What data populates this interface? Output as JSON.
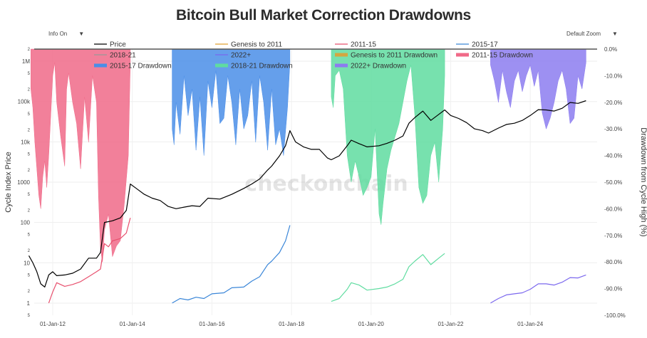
{
  "page": {
    "title": "Bitcoin Bull Market Correction Drawdowns",
    "info_menu": {
      "label": "Info On",
      "arrow": "▼"
    },
    "zoom_menu": {
      "label": "Default Zoom",
      "arrow": "▼"
    },
    "watermark": "checkonchain"
  },
  "chart_data": {
    "type": "line",
    "title": "Bitcoin Bull Market Correction Drawdowns",
    "xlabel": "",
    "ylabel": "Cycle Index Price",
    "y2label": "Drawdown from Cycle High (%)",
    "x_ticks": [
      "01-Jan-12",
      "01-Jan-14",
      "01-Jan-16",
      "01-Jan-18",
      "01-Jan-20",
      "01-Jan-22",
      "01-Jan-24"
    ],
    "x_tick_years": [
      2012,
      2014,
      2016,
      2018,
      2020,
      2022,
      2024
    ],
    "xlim": [
      2011.3,
      2025.5
    ],
    "y_axis": {
      "scale": "log",
      "ylim": [
        0.5,
        2000000
      ],
      "major_ticks": [
        {
          "value": 1000000,
          "label": "1M"
        },
        {
          "value": 100000,
          "label": "100k"
        },
        {
          "value": 10000,
          "label": "10k"
        },
        {
          "value": 1000,
          "label": "1000"
        },
        {
          "value": 100,
          "label": "100"
        },
        {
          "value": 10,
          "label": "10"
        },
        {
          "value": 1,
          "label": "1"
        }
      ],
      "minor_ticks": [
        {
          "value": 2000000,
          "label": "2"
        },
        {
          "value": 500000,
          "label": "5"
        },
        {
          "value": 200000,
          "label": "2"
        },
        {
          "value": 50000,
          "label": "5"
        },
        {
          "value": 20000,
          "label": "2"
        },
        {
          "value": 5000,
          "label": "5"
        },
        {
          "value": 2000,
          "label": "2"
        },
        {
          "value": 500,
          "label": "5"
        },
        {
          "value": 200,
          "label": "2"
        },
        {
          "value": 50,
          "label": "5"
        },
        {
          "value": 20,
          "label": "2"
        },
        {
          "value": 5,
          "label": "5"
        },
        {
          "value": 2,
          "label": "2"
        },
        {
          "value": 0.5,
          "label": "5"
        }
      ]
    },
    "y2_axis": {
      "ylim": [
        -100,
        0
      ],
      "ticks": [
        {
          "value": 0,
          "label": "0.0%"
        },
        {
          "value": -10,
          "label": "-10.0%"
        },
        {
          "value": -20,
          "label": "-20.0%"
        },
        {
          "value": -30,
          "label": "-30.0%"
        },
        {
          "value": -40,
          "label": "-40.0%"
        },
        {
          "value": -50,
          "label": "-50.0%"
        },
        {
          "value": -60,
          "label": "-60.0%"
        },
        {
          "value": -70,
          "label": "-70.0%"
        },
        {
          "value": -80,
          "label": "-80.0%"
        },
        {
          "value": -90,
          "label": "-90.0%"
        },
        {
          "value": -100,
          "label": "-100.0%"
        }
      ]
    },
    "legend": {
      "placement": "top",
      "entries": [
        {
          "label": "Price",
          "color": "#000000",
          "kind": "line"
        },
        {
          "label": "Genesis to 2011",
          "color": "#e0a030",
          "kind": "line"
        },
        {
          "label": "2011-15",
          "color": "#e8506e",
          "kind": "line"
        },
        {
          "label": "2015-17",
          "color": "#3a86d8",
          "kind": "line"
        },
        {
          "label": "2018-21",
          "color": "#999999",
          "kind": "line"
        },
        {
          "label": "2022+",
          "color": "#7b68ee",
          "kind": "line"
        },
        {
          "label": "Genesis to 2011 Drawdown",
          "color": "#d4a640",
          "kind": "area"
        },
        {
          "label": "2011-15 Drawdown",
          "color": "#f06a88",
          "kind": "area"
        },
        {
          "label": "2015-17 Drawdown",
          "color": "#4a8ee8",
          "kind": "area"
        },
        {
          "label": "2018-21 Drawdown",
          "color": "#5fdca0",
          "kind": "area"
        },
        {
          "label": "2022+ Drawdown",
          "color": "#8c7cf0",
          "kind": "area"
        }
      ]
    },
    "series": [
      {
        "name": "Price",
        "color": "#000000",
        "axis": "left",
        "x": [
          2011.4,
          2011.5,
          2011.6,
          2011.7,
          2011.8,
          2011.9,
          2012.0,
          2012.1,
          2012.3,
          2012.5,
          2012.7,
          2012.9,
          2013.1,
          2013.2,
          2013.3,
          2013.5,
          2013.7,
          2013.85,
          2013.95,
          2014.1,
          2014.3,
          2014.5,
          2014.7,
          2014.9,
          2015.1,
          2015.3,
          2015.5,
          2015.7,
          2015.9,
          2016.2,
          2016.5,
          2016.8,
          2017.0,
          2017.2,
          2017.4,
          2017.5,
          2017.7,
          2017.85,
          2017.96,
          2018.1,
          2018.3,
          2018.5,
          2018.7,
          2018.9,
          2019.0,
          2019.2,
          2019.4,
          2019.5,
          2019.7,
          2019.9,
          2020.2,
          2020.4,
          2020.6,
          2020.8,
          2020.95,
          2021.1,
          2021.3,
          2021.5,
          2021.7,
          2021.85,
          2022.0,
          2022.2,
          2022.4,
          2022.6,
          2022.8,
          2022.95,
          2023.2,
          2023.4,
          2023.6,
          2023.8,
          2024.0,
          2024.2,
          2024.4,
          2024.6,
          2024.8,
          2025.0,
          2025.2,
          2025.4
        ],
        "values": [
          15,
          10,
          6,
          3,
          2.5,
          5,
          6,
          4.8,
          5,
          5.5,
          7,
          13,
          13,
          18,
          100,
          110,
          130,
          200,
          900,
          700,
          500,
          400,
          350,
          250,
          220,
          240,
          260,
          250,
          400,
          380,
          500,
          700,
          900,
          1200,
          2000,
          2500,
          4500,
          8000,
          19000,
          10000,
          7500,
          6500,
          6500,
          4000,
          3600,
          4500,
          8000,
          11000,
          9000,
          7500,
          8000,
          9200,
          11000,
          14000,
          29000,
          40000,
          58000,
          34000,
          48000,
          62000,
          45000,
          38000,
          30000,
          21000,
          19000,
          16500,
          22000,
          27000,
          29000,
          34000,
          45000,
          63000,
          62000,
          58000,
          68000,
          95000,
          90000,
          105000
        ]
      },
      {
        "name": "2011-15",
        "color": "#e8506e",
        "axis": "left",
        "x": [
          2011.9,
          2012.0,
          2012.1,
          2012.3,
          2012.5,
          2012.7,
          2012.9,
          2013.1,
          2013.2,
          2013.3,
          2013.4,
          2013.5,
          2013.7,
          2013.85,
          2013.95
        ],
        "values": [
          1,
          1.9,
          3.2,
          2.6,
          2.9,
          3.4,
          4.5,
          6,
          7,
          30,
          25,
          35,
          40,
          55,
          130
        ]
      },
      {
        "name": "2015-17",
        "color": "#3a86d8",
        "axis": "left",
        "x": [
          2015.0,
          2015.2,
          2015.4,
          2015.6,
          2015.8,
          2016.0,
          2016.3,
          2016.5,
          2016.8,
          2017.0,
          2017.2,
          2017.4,
          2017.5,
          2017.7,
          2017.85,
          2017.96
        ],
        "values": [
          1,
          1.3,
          1.2,
          1.4,
          1.3,
          1.7,
          1.8,
          2.4,
          2.5,
          3.5,
          4.5,
          9,
          11,
          18,
          35,
          85
        ]
      },
      {
        "name": "2018-21",
        "color": "#5fdca0",
        "axis": "left",
        "x": [
          2019.0,
          2019.2,
          2019.4,
          2019.5,
          2019.7,
          2019.9,
          2020.2,
          2020.4,
          2020.6,
          2020.8,
          2020.95,
          2021.1,
          2021.3,
          2021.5,
          2021.7,
          2021.85
        ],
        "values": [
          1.1,
          1.3,
          2.2,
          3.2,
          2.8,
          2.1,
          2.3,
          2.5,
          3,
          3.9,
          8,
          11,
          16,
          9,
          13,
          17
        ]
      },
      {
        "name": "2022+",
        "color": "#7b68ee",
        "axis": "left",
        "x": [
          2023.0,
          2023.2,
          2023.4,
          2023.6,
          2023.8,
          2024.0,
          2024.2,
          2024.4,
          2024.6,
          2024.8,
          2025.0,
          2025.2,
          2025.4
        ],
        "values": [
          1,
          1.3,
          1.6,
          1.7,
          1.8,
          2.2,
          3.0,
          3.0,
          2.8,
          3.3,
          4.3,
          4.2,
          5.0
        ]
      }
    ],
    "drawdowns": [
      {
        "name": "2011-15 Drawdown",
        "color": "#f06a88",
        "x": [
          2011.45,
          2011.5,
          2011.55,
          2011.6,
          2011.65,
          2011.7,
          2011.75,
          2011.8,
          2011.85,
          2011.9,
          2011.95,
          2012.0,
          2012.05,
          2012.1,
          2012.2,
          2012.3,
          2012.35,
          2012.4,
          2012.5,
          2012.6,
          2012.7,
          2012.8,
          2012.9,
          2013.0,
          2013.1,
          2013.15,
          2013.2,
          2013.25,
          2013.3,
          2013.4,
          2013.5,
          2013.6,
          2013.7,
          2013.8,
          2013.9,
          2013.95
        ],
        "values": [
          -15,
          -22,
          -35,
          -45,
          -55,
          -60,
          -48,
          -42,
          -52,
          -40,
          -25,
          -10,
          -5,
          -20,
          -33,
          -44,
          -15,
          -9,
          -20,
          -28,
          -45,
          -18,
          -35,
          -10,
          -20,
          -55,
          -75,
          -80,
          -68,
          -62,
          -78,
          -74,
          -72,
          -58,
          -40,
          -5
        ]
      },
      {
        "name": "2015-17 Drawdown",
        "color": "#4a8ee8",
        "x": [
          2015.0,
          2015.05,
          2015.1,
          2015.2,
          2015.3,
          2015.4,
          2015.5,
          2015.6,
          2015.7,
          2015.8,
          2015.9,
          2016.0,
          2016.1,
          2016.2,
          2016.3,
          2016.4,
          2016.5,
          2016.6,
          2016.7,
          2016.8,
          2016.9,
          2017.0,
          2017.1,
          2017.2,
          2017.3,
          2017.4,
          2017.5,
          2017.6,
          2017.7,
          2017.8,
          2017.9,
          2017.96
        ],
        "values": [
          -30,
          -36,
          -20,
          -32,
          -10,
          -25,
          -15,
          -38,
          -18,
          -40,
          -12,
          -22,
          -8,
          -28,
          -26,
          -10,
          -20,
          -36,
          -15,
          -30,
          -25,
          -12,
          -35,
          -10,
          -20,
          -38,
          -15,
          -36,
          -30,
          -40,
          -22,
          -5
        ]
      },
      {
        "name": "2018-21 Drawdown",
        "color": "#5fdca0",
        "x": [
          2019.0,
          2019.05,
          2019.1,
          2019.2,
          2019.3,
          2019.4,
          2019.5,
          2019.6,
          2019.7,
          2019.8,
          2019.9,
          2020.0,
          2020.1,
          2020.2,
          2020.25,
          2020.3,
          2020.4,
          2020.5,
          2020.6,
          2020.7,
          2020.8,
          2020.9,
          2021.0,
          2021.1,
          2021.2,
          2021.3,
          2021.4,
          2021.5,
          2021.6,
          2021.7,
          2021.8,
          2021.85
        ],
        "values": [
          -18,
          -22,
          -10,
          -8,
          -15,
          -40,
          -50,
          -42,
          -48,
          -55,
          -52,
          -48,
          -30,
          -62,
          -66,
          -58,
          -45,
          -38,
          -33,
          -28,
          -20,
          -12,
          -6,
          -25,
          -52,
          -58,
          -55,
          -40,
          -35,
          -50,
          -30,
          -10
        ]
      },
      {
        "name": "2022+ Drawdown",
        "color": "#8c7cf0",
        "x": [
          2023.0,
          2023.1,
          2023.2,
          2023.3,
          2023.4,
          2023.5,
          2023.6,
          2023.7,
          2023.8,
          2023.9,
          2024.0,
          2024.1,
          2024.2,
          2024.3,
          2024.4,
          2024.5,
          2024.6,
          2024.7,
          2024.8,
          2024.9,
          2025.0,
          2025.1,
          2025.2,
          2025.3,
          2025.4
        ],
        "values": [
          -6,
          -12,
          -20,
          -8,
          -16,
          -22,
          -12,
          -8,
          -16,
          -10,
          -6,
          -14,
          -8,
          -24,
          -30,
          -26,
          -20,
          -12,
          -8,
          -15,
          -28,
          -26,
          -10,
          -15,
          -5
        ]
      }
    ]
  }
}
